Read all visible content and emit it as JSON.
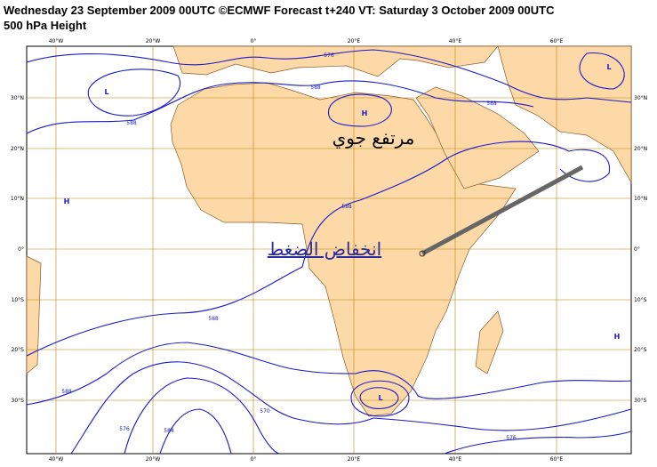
{
  "header": {
    "line1": "Wednesday 23 September 2009 00UTC ©ECMWF Forecast t+240 VT: Saturday 3 October 2009 00UTC",
    "line2": "500 hPa Height"
  },
  "map": {
    "lon_labels": [
      "40°W",
      "20°W",
      "0°",
      "20°E",
      "40°E",
      "60°E"
    ],
    "lat_labels": [
      "30°N",
      "20°N",
      "10°N",
      "0°",
      "10°S",
      "20°S",
      "30°S"
    ],
    "contour_labels": [
      "576",
      "588",
      "588",
      "588",
      "588",
      "588",
      "588",
      "576",
      "584",
      "570",
      "576"
    ],
    "pressure_centers": [
      "L",
      "L",
      "H",
      "H",
      "H",
      "L"
    ],
    "annotations": [
      "مرتفع جوي",
      "انخفاض الضغط"
    ]
  }
}
